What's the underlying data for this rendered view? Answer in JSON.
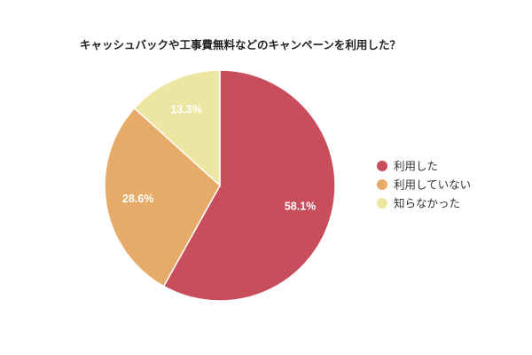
{
  "chart_data": {
    "type": "pie",
    "title": "キャッシュバックや工事費無料などのキャンペーンを利用した？",
    "legend_position": "right",
    "slices": [
      {
        "label": "利用した",
        "value": 58.1,
        "value_label": "58.1%",
        "color": "#c84e5c"
      },
      {
        "label": "利用していない",
        "value": 28.6,
        "value_label": "28.6%",
        "color": "#e6ab68"
      },
      {
        "label": "知らなかった",
        "value": 13.3,
        "value_label": "13.3%",
        "color": "#ede6a2"
      }
    ]
  }
}
